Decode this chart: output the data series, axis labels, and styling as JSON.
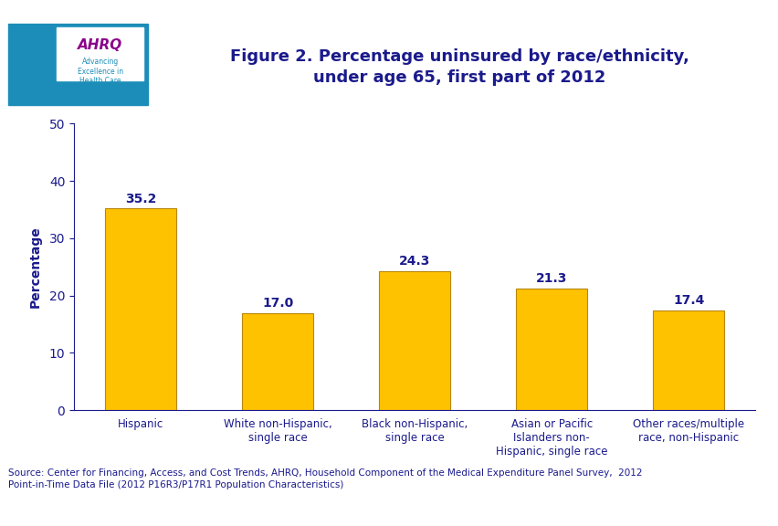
{
  "title_line1": "Figure 2. Percentage uninsured by race/ethnicity,",
  "title_line2": "under age 65, first part of 2012",
  "categories": [
    "Hispanic",
    "White non-Hispanic,\nsingle race",
    "Black non-Hispanic,\nsingle race",
    "Asian or Pacific\nIslanders non-\nHispanic, single race",
    "Other races/multiple\nrace, non-Hispanic"
  ],
  "values": [
    35.2,
    17.0,
    24.3,
    21.3,
    17.4
  ],
  "bar_color": "#FFC200",
  "bar_edge_color": "#B8860B",
  "ylabel": "Percentage",
  "ylim": [
    0,
    50
  ],
  "yticks": [
    0,
    10,
    20,
    30,
    40,
    50
  ],
  "title_color": "#1A1A8C",
  "axis_color": "#1A1A8C",
  "label_color": "#1A1A8C",
  "value_label_color": "#1A1A8C",
  "header_bar_color": "#1A3080",
  "background_color": "#FFFFFF",
  "source_text": "Source: Center for Financing, Access, and Cost Trends, AHRQ, Household Component of the Medical Expenditure Panel Survey,  2012\nPoint-in-Time Data File (2012 P16R3/P17R1 Population Characteristics)",
  "title_fontsize": 13,
  "ylabel_fontsize": 10,
  "tick_fontsize": 10,
  "value_fontsize": 10,
  "source_fontsize": 7.5,
  "cat_fontsize": 8.5,
  "logo_box_color": "#1B8DB8",
  "logo_text_color": "#FFFFFF"
}
